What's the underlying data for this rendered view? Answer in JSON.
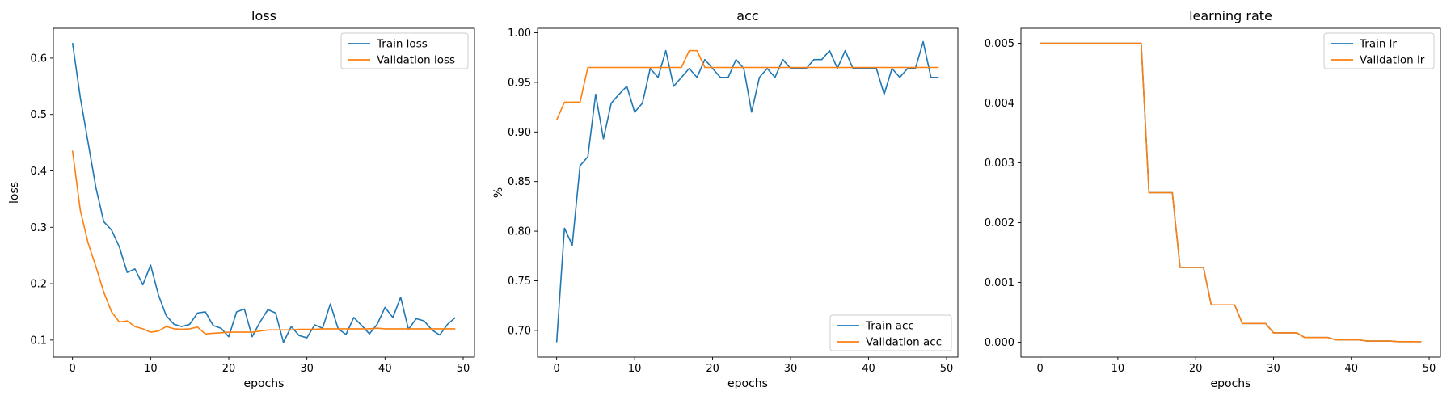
{
  "series_colors": [
    "#1f77b4",
    "#ff7f0e"
  ],
  "chart_data": [
    {
      "type": "line",
      "title": "loss",
      "xlabel": "epochs",
      "ylabel": "loss",
      "xlim": [
        -2.45,
        51.45
      ],
      "ylim": [
        0.0697,
        0.6529
      ],
      "xticks": [
        0,
        10,
        20,
        30,
        40,
        50
      ],
      "yticks": [
        0.1,
        0.2,
        0.3,
        0.4,
        0.5,
        0.6
      ],
      "ytick_labels": [
        "0.1",
        "0.2",
        "0.3",
        "0.4",
        "0.5",
        "0.6"
      ],
      "legend": "top-right",
      "grid": false,
      "x": [
        0,
        1,
        2,
        3,
        4,
        5,
        6,
        7,
        8,
        9,
        10,
        11,
        12,
        13,
        14,
        15,
        16,
        17,
        18,
        19,
        20,
        21,
        22,
        23,
        24,
        25,
        26,
        27,
        28,
        29,
        30,
        31,
        32,
        33,
        34,
        35,
        36,
        37,
        38,
        39,
        40,
        41,
        42,
        43,
        44,
        45,
        46,
        47,
        48,
        49
      ],
      "series": [
        {
          "name": "Train loss",
          "values": [
            0.627,
            0.53,
            0.45,
            0.37,
            0.31,
            0.295,
            0.265,
            0.22,
            0.226,
            0.198,
            0.233,
            0.18,
            0.143,
            0.128,
            0.124,
            0.128,
            0.148,
            0.15,
            0.126,
            0.121,
            0.106,
            0.15,
            0.155,
            0.106,
            0.132,
            0.154,
            0.148,
            0.096,
            0.124,
            0.108,
            0.104,
            0.127,
            0.121,
            0.164,
            0.12,
            0.11,
            0.14,
            0.126,
            0.111,
            0.128,
            0.158,
            0.14,
            0.176,
            0.119,
            0.138,
            0.134,
            0.118,
            0.109,
            0.128,
            0.14
          ]
        },
        {
          "name": "Validation loss",
          "values": [
            0.436,
            0.33,
            0.272,
            0.23,
            0.185,
            0.15,
            0.132,
            0.134,
            0.124,
            0.12,
            0.114,
            0.116,
            0.124,
            0.12,
            0.119,
            0.12,
            0.123,
            0.111,
            0.112,
            0.113,
            0.114,
            0.114,
            0.114,
            0.114,
            0.116,
            0.118,
            0.118,
            0.118,
            0.118,
            0.119,
            0.119,
            0.119,
            0.12,
            0.12,
            0.12,
            0.12,
            0.12,
            0.12,
            0.12,
            0.121,
            0.12,
            0.12,
            0.12,
            0.12,
            0.12,
            0.12,
            0.12,
            0.12,
            0.12,
            0.12
          ]
        }
      ]
    },
    {
      "type": "line",
      "title": "acc",
      "xlabel": "epochs",
      "ylabel": "%",
      "xlim": [
        -2.45,
        51.45
      ],
      "ylim": [
        0.673,
        1.0045
      ],
      "xticks": [
        0,
        10,
        20,
        30,
        40,
        50
      ],
      "yticks": [
        0.7,
        0.75,
        0.8,
        0.85,
        0.9,
        0.95,
        1.0
      ],
      "ytick_labels": [
        "0.70",
        "0.75",
        "0.80",
        "0.85",
        "0.90",
        "0.95",
        "1.00"
      ],
      "legend": "bottom-right",
      "grid": false,
      "x": [
        0,
        1,
        2,
        3,
        4,
        5,
        6,
        7,
        8,
        9,
        10,
        11,
        12,
        13,
        14,
        15,
        16,
        17,
        18,
        19,
        20,
        21,
        22,
        23,
        24,
        25,
        26,
        27,
        28,
        29,
        30,
        31,
        32,
        33,
        34,
        35,
        36,
        37,
        38,
        39,
        40,
        41,
        42,
        43,
        44,
        45,
        46,
        47,
        48,
        49
      ],
      "series": [
        {
          "name": "Train acc",
          "values": [
            0.688,
            0.803,
            0.786,
            0.866,
            0.875,
            0.938,
            0.893,
            0.929,
            0.938,
            0.946,
            0.92,
            0.929,
            0.964,
            0.955,
            0.982,
            0.946,
            0.955,
            0.964,
            0.955,
            0.973,
            0.964,
            0.955,
            0.955,
            0.973,
            0.964,
            0.92,
            0.955,
            0.964,
            0.955,
            0.973,
            0.964,
            0.964,
            0.964,
            0.973,
            0.973,
            0.982,
            0.964,
            0.982,
            0.964,
            0.964,
            0.964,
            0.964,
            0.938,
            0.964,
            0.955,
            0.964,
            0.964,
            0.991,
            0.955,
            0.955
          ]
        },
        {
          "name": "Validation acc",
          "values": [
            0.912,
            0.93,
            0.93,
            0.93,
            0.965,
            0.965,
            0.965,
            0.965,
            0.965,
            0.965,
            0.965,
            0.965,
            0.965,
            0.965,
            0.965,
            0.965,
            0.965,
            0.982,
            0.982,
            0.965,
            0.965,
            0.965,
            0.965,
            0.965,
            0.965,
            0.965,
            0.965,
            0.965,
            0.965,
            0.965,
            0.965,
            0.965,
            0.965,
            0.965,
            0.965,
            0.965,
            0.965,
            0.965,
            0.965,
            0.965,
            0.965,
            0.965,
            0.965,
            0.965,
            0.965,
            0.965,
            0.965,
            0.965,
            0.965,
            0.965
          ]
        }
      ]
    },
    {
      "type": "line",
      "title": "learning rate",
      "xlabel": "epochs",
      "ylabel": "",
      "xlim": [
        -2.45,
        51.45
      ],
      "ylim": [
        -0.00025,
        0.00525
      ],
      "xticks": [
        0,
        10,
        20,
        30,
        40,
        50
      ],
      "yticks": [
        0.0,
        0.001,
        0.002,
        0.003,
        0.004,
        0.005
      ],
      "ytick_labels": [
        "0.000",
        "0.001",
        "0.002",
        "0.003",
        "0.004",
        "0.005"
      ],
      "legend": "top-right",
      "grid": false,
      "x": [
        0,
        1,
        2,
        3,
        4,
        5,
        6,
        7,
        8,
        9,
        10,
        11,
        12,
        13,
        14,
        15,
        16,
        17,
        18,
        19,
        20,
        21,
        22,
        23,
        24,
        25,
        26,
        27,
        28,
        29,
        30,
        31,
        32,
        33,
        34,
        35,
        36,
        37,
        38,
        39,
        40,
        41,
        42,
        43,
        44,
        45,
        46,
        47,
        48,
        49
      ],
      "series": [
        {
          "name": "Train lr",
          "values": [
            0.005,
            0.005,
            0.005,
            0.005,
            0.005,
            0.005,
            0.005,
            0.005,
            0.005,
            0.005,
            0.005,
            0.005,
            0.005,
            0.005,
            0.0025,
            0.0025,
            0.0025,
            0.0025,
            0.00125,
            0.00125,
            0.00125,
            0.00125,
            0.000625,
            0.000625,
            0.000625,
            0.000625,
            0.0003125,
            0.0003125,
            0.0003125,
            0.0003125,
            0.00015625,
            0.00015625,
            0.00015625,
            0.00015625,
            7.8e-05,
            7.8e-05,
            7.8e-05,
            7.8e-05,
            3.9e-05,
            3.9e-05,
            3.9e-05,
            3.9e-05,
            1.95e-05,
            1.95e-05,
            1.95e-05,
            1.95e-05,
            9.8e-06,
            9.8e-06,
            9.8e-06,
            9.8e-06
          ]
        },
        {
          "name": "Validation lr",
          "values": [
            0.005,
            0.005,
            0.005,
            0.005,
            0.005,
            0.005,
            0.005,
            0.005,
            0.005,
            0.005,
            0.005,
            0.005,
            0.005,
            0.005,
            0.0025,
            0.0025,
            0.0025,
            0.0025,
            0.00125,
            0.00125,
            0.00125,
            0.00125,
            0.000625,
            0.000625,
            0.000625,
            0.000625,
            0.0003125,
            0.0003125,
            0.0003125,
            0.0003125,
            0.00015625,
            0.00015625,
            0.00015625,
            0.00015625,
            7.8e-05,
            7.8e-05,
            7.8e-05,
            7.8e-05,
            3.9e-05,
            3.9e-05,
            3.9e-05,
            3.9e-05,
            1.95e-05,
            1.95e-05,
            1.95e-05,
            1.95e-05,
            9.8e-06,
            9.8e-06,
            9.8e-06,
            9.8e-06
          ]
        }
      ]
    }
  ]
}
